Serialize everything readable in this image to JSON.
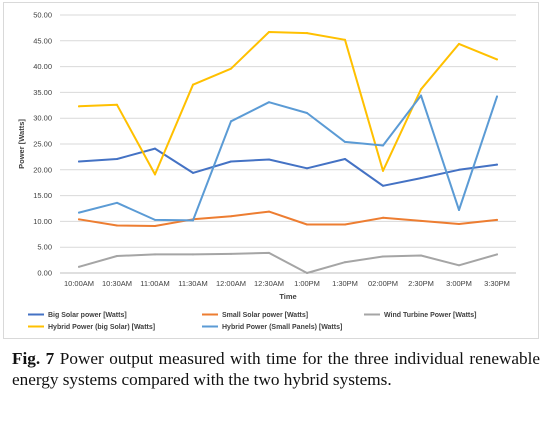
{
  "chart_data": {
    "type": "line",
    "title": "",
    "xlabel": "Time",
    "ylabel": "Power [Watts]",
    "ylim": [
      0,
      50
    ],
    "y_ticks": [
      "0.00",
      "5.00",
      "10.00",
      "15.00",
      "20.00",
      "25.00",
      "30.00",
      "35.00",
      "40.00",
      "45.00",
      "50.00"
    ],
    "categories": [
      "10:00AM",
      "10:30AM",
      "11:00AM",
      "11:30AM",
      "12:00AM",
      "12:30AM",
      "1:00PM",
      "1:30PM",
      "02:00PM",
      "2:30PM",
      "3:00PM",
      "3:30PM"
    ],
    "grid": "horizontal",
    "legend_placement": "bottom",
    "series": [
      {
        "name": "Big Solar power [Watts]",
        "color": "#4472c4",
        "values": [
          21.6,
          22.1,
          24.1,
          19.4,
          21.6,
          22.0,
          20.3,
          22.1,
          16.9,
          18.4,
          20.0,
          21.0
        ]
      },
      {
        "name": "Small Solar power [Watts]",
        "color": "#ed7d31",
        "values": [
          10.4,
          9.2,
          9.1,
          10.4,
          11.0,
          11.9,
          9.4,
          9.4,
          10.7,
          10.1,
          9.5,
          10.3
        ]
      },
      {
        "name": "Wind Turbine Power [Watts]",
        "color": "#a5a5a5",
        "values": [
          1.2,
          3.3,
          3.6,
          3.6,
          3.7,
          3.9,
          0.0,
          2.1,
          3.2,
          3.4,
          1.5,
          3.6
        ]
      },
      {
        "name": "Hybrid Power (big Solar) [Watts]",
        "color": "#ffc000",
        "values": [
          32.3,
          32.6,
          19.1,
          36.5,
          39.6,
          46.7,
          46.5,
          45.2,
          19.8,
          35.6,
          44.4,
          41.4
        ]
      },
      {
        "name": "Hybrid Power (Small Panels) [Watts]",
        "color": "#5b9bd5",
        "values": [
          11.7,
          13.6,
          10.3,
          10.2,
          29.4,
          33.1,
          31.0,
          25.4,
          24.7,
          34.4,
          12.2,
          34.2
        ]
      }
    ]
  },
  "caption": {
    "label": "Fig. 7",
    "text": " Power output measured with time for the three individual renewable energy systems compared with the two hybrid systems."
  }
}
